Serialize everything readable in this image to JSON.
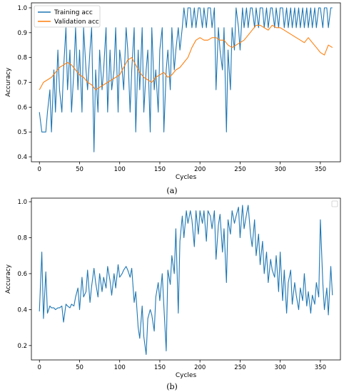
{
  "chart_data": [
    {
      "type": "line",
      "caption": "(a)",
      "xlabel": "Cycles",
      "ylabel": "Accuracy",
      "xlim": [
        -10,
        375
      ],
      "ylim": [
        0.38,
        1.02
      ],
      "xticks": [
        0,
        50,
        100,
        150,
        200,
        250,
        300,
        350
      ],
      "yticks": [
        0.4,
        0.5,
        0.6,
        0.7,
        0.8,
        0.9,
        1.0
      ],
      "legend": "top-left",
      "grid": false,
      "series": [
        {
          "name": "Training acc",
          "color": "#1f77b4",
          "x": [
            0,
            3,
            5,
            8,
            10,
            13,
            15,
            18,
            20,
            23,
            25,
            28,
            30,
            33,
            35,
            38,
            40,
            43,
            45,
            48,
            50,
            53,
            55,
            58,
            60,
            63,
            65,
            68,
            70,
            73,
            75,
            78,
            80,
            83,
            85,
            88,
            90,
            93,
            95,
            98,
            100,
            103,
            105,
            108,
            110,
            113,
            115,
            118,
            120,
            123,
            125,
            128,
            130,
            133,
            135,
            138,
            140,
            143,
            145,
            148,
            150,
            153,
            155,
            158,
            160,
            163,
            165,
            168,
            170,
            173,
            175,
            178,
            180,
            183,
            185,
            188,
            190,
            193,
            195,
            198,
            200,
            203,
            205,
            208,
            210,
            213,
            215,
            218,
            220,
            223,
            225,
            228,
            230,
            233,
            235,
            238,
            240,
            243,
            245,
            248,
            250,
            253,
            255,
            258,
            260,
            263,
            265,
            268,
            270,
            273,
            275,
            278,
            280,
            283,
            285,
            288,
            290,
            293,
            295,
            298,
            300,
            303,
            305,
            308,
            310,
            313,
            315,
            318,
            320,
            323,
            325,
            328,
            330,
            333,
            335,
            338,
            340,
            343,
            345,
            348,
            350,
            353,
            355,
            358,
            360,
            363,
            365
          ],
          "values": [
            0.58,
            0.5,
            0.5,
            0.5,
            0.58,
            0.67,
            0.5,
            0.75,
            0.58,
            0.83,
            0.67,
            0.58,
            0.75,
            0.92,
            0.67,
            0.83,
            0.58,
            0.75,
            0.92,
            0.67,
            0.83,
            0.58,
            0.92,
            0.75,
            0.67,
            0.83,
            0.92,
            0.42,
            0.75,
            0.58,
            0.83,
            0.67,
            0.75,
            0.92,
            0.58,
            0.83,
            0.67,
            0.75,
            0.92,
            0.58,
            0.83,
            0.75,
            0.67,
            0.92,
            0.83,
            0.58,
            0.75,
            0.92,
            0.5,
            0.83,
            0.67,
            0.92,
            0.58,
            0.75,
            0.83,
            0.5,
            0.92,
            0.67,
            0.75,
            0.58,
            0.83,
            0.92,
            0.5,
            0.75,
            0.83,
            0.67,
            0.92,
            0.75,
            0.83,
            0.92,
            0.83,
            0.92,
            1.0,
            0.92,
            1.0,
            1.0,
            0.92,
            1.0,
            0.92,
            1.0,
            1.0,
            0.92,
            1.0,
            0.92,
            1.0,
            1.0,
            0.92,
            1.0,
            0.67,
            0.92,
            0.83,
            0.75,
            0.92,
            0.5,
            0.83,
            0.67,
            0.92,
            0.83,
            1.0,
            0.92,
            0.83,
            1.0,
            0.92,
            1.0,
            0.92,
            1.0,
            1.0,
            0.92,
            1.0,
            0.92,
            1.0,
            1.0,
            0.92,
            1.0,
            0.92,
            1.0,
            1.0,
            0.92,
            1.0,
            0.92,
            1.0,
            1.0,
            0.92,
            1.0,
            0.92,
            1.0,
            0.92,
            1.0,
            0.92,
            1.0,
            0.92,
            1.0,
            0.92,
            1.0,
            0.92,
            1.0,
            0.92,
            1.0,
            0.92,
            1.0,
            1.0,
            0.92,
            1.0,
            1.0,
            0.92,
            1.0,
            1.0
          ]
        },
        {
          "name": "Validation acc",
          "color": "#ff7f0e",
          "x": [
            0,
            5,
            10,
            15,
            20,
            25,
            30,
            35,
            40,
            45,
            50,
            55,
            60,
            65,
            70,
            75,
            80,
            85,
            90,
            95,
            100,
            105,
            110,
            115,
            120,
            125,
            130,
            135,
            140,
            145,
            150,
            155,
            160,
            165,
            170,
            175,
            180,
            185,
            190,
            195,
            200,
            205,
            210,
            215,
            220,
            225,
            230,
            235,
            240,
            245,
            250,
            255,
            260,
            265,
            270,
            275,
            280,
            285,
            290,
            295,
            300,
            305,
            310,
            315,
            320,
            325,
            330,
            335,
            340,
            345,
            350,
            355,
            360,
            365
          ],
          "values": [
            0.67,
            0.7,
            0.71,
            0.72,
            0.74,
            0.76,
            0.77,
            0.78,
            0.77,
            0.75,
            0.73,
            0.72,
            0.7,
            0.69,
            0.67,
            0.68,
            0.69,
            0.7,
            0.71,
            0.72,
            0.73,
            0.76,
            0.79,
            0.8,
            0.77,
            0.74,
            0.72,
            0.71,
            0.7,
            0.72,
            0.73,
            0.74,
            0.72,
            0.73,
            0.75,
            0.76,
            0.78,
            0.8,
            0.84,
            0.87,
            0.88,
            0.87,
            0.87,
            0.88,
            0.88,
            0.87,
            0.87,
            0.85,
            0.84,
            0.85,
            0.86,
            0.87,
            0.89,
            0.91,
            0.93,
            0.93,
            0.92,
            0.91,
            0.93,
            0.92,
            0.92,
            0.91,
            0.9,
            0.89,
            0.88,
            0.87,
            0.86,
            0.88,
            0.86,
            0.84,
            0.82,
            0.81,
            0.85,
            0.84
          ]
        }
      ]
    },
    {
      "type": "line",
      "caption": "(b)",
      "xlabel": "Cycles",
      "ylabel": "Accuracy",
      "xlim": [
        -10,
        375
      ],
      "ylim": [
        0.12,
        1.02
      ],
      "xticks": [
        0,
        50,
        100,
        150,
        200,
        250,
        300,
        350
      ],
      "yticks": [
        0.2,
        0.4,
        0.6,
        0.8,
        1.0
      ],
      "legend": "top-right",
      "grid": false,
      "series": [
        {
          "color": "#1f77b4",
          "x": [
            0,
            3,
            5,
            8,
            10,
            13,
            15,
            18,
            20,
            23,
            25,
            28,
            30,
            33,
            35,
            38,
            40,
            43,
            45,
            48,
            50,
            53,
            55,
            58,
            60,
            63,
            65,
            68,
            70,
            73,
            75,
            78,
            80,
            83,
            85,
            88,
            90,
            93,
            95,
            98,
            100,
            103,
            105,
            108,
            110,
            113,
            115,
            118,
            120,
            123,
            125,
            128,
            130,
            133,
            135,
            138,
            140,
            143,
            145,
            148,
            150,
            153,
            155,
            158,
            160,
            163,
            165,
            168,
            170,
            173,
            175,
            178,
            180,
            183,
            185,
            188,
            190,
            193,
            195,
            198,
            200,
            203,
            205,
            208,
            210,
            213,
            215,
            218,
            220,
            223,
            225,
            228,
            230,
            233,
            235,
            238,
            240,
            243,
            245,
            248,
            250,
            253,
            255,
            258,
            260,
            263,
            265,
            268,
            270,
            273,
            275,
            278,
            280,
            283,
            285,
            288,
            290,
            293,
            295,
            298,
            300,
            303,
            305,
            308,
            310,
            313,
            315,
            318,
            320,
            323,
            325,
            328,
            330,
            333,
            335,
            338,
            340,
            343,
            345,
            348,
            350,
            353,
            355,
            358,
            360,
            363,
            365
          ],
          "values": [
            0.39,
            0.72,
            0.35,
            0.61,
            0.38,
            0.42,
            0.41,
            0.41,
            0.4,
            0.41,
            0.41,
            0.42,
            0.33,
            0.43,
            0.42,
            0.41,
            0.43,
            0.42,
            0.47,
            0.52,
            0.4,
            0.58,
            0.47,
            0.5,
            0.62,
            0.44,
            0.53,
            0.63,
            0.55,
            0.47,
            0.6,
            0.5,
            0.58,
            0.52,
            0.64,
            0.56,
            0.48,
            0.6,
            0.52,
            0.65,
            0.58,
            0.6,
            0.62,
            0.64,
            0.62,
            0.58,
            0.63,
            0.44,
            0.5,
            0.3,
            0.24,
            0.42,
            0.25,
            0.15,
            0.35,
            0.4,
            0.37,
            0.28,
            0.47,
            0.55,
            0.45,
            0.6,
            0.42,
            0.17,
            0.62,
            0.54,
            0.7,
            0.6,
            0.85,
            0.38,
            0.78,
            0.92,
            0.8,
            0.95,
            0.88,
            0.95,
            0.9,
            0.75,
            0.95,
            0.82,
            0.95,
            0.88,
            0.95,
            0.78,
            0.95,
            0.92,
            0.85,
            0.95,
            0.68,
            0.87,
            0.93,
            0.72,
            0.85,
            0.55,
            0.9,
            0.82,
            0.95,
            0.88,
            0.92,
            0.97,
            0.8,
            0.98,
            0.85,
            0.93,
            0.98,
            0.82,
            0.75,
            0.9,
            0.7,
            0.82,
            0.65,
            0.78,
            0.6,
            0.72,
            0.55,
            0.68,
            0.62,
            0.58,
            0.7,
            0.5,
            0.72,
            0.45,
            0.62,
            0.38,
            0.55,
            0.62,
            0.43,
            0.55,
            0.48,
            0.4,
            0.52,
            0.45,
            0.6,
            0.42,
            0.5,
            0.38,
            0.48,
            0.43,
            0.55,
            0.47,
            0.9,
            0.55,
            0.4,
            0.52,
            0.37,
            0.64,
            0.48
          ]
        }
      ]
    }
  ]
}
